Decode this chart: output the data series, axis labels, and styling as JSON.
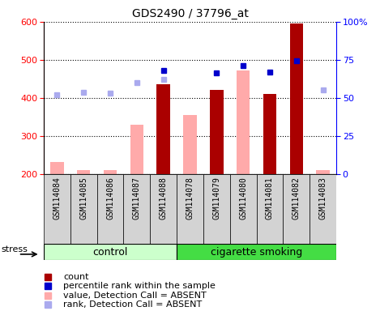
{
  "title": "GDS2490 / 37796_at",
  "samples": [
    "GSM114084",
    "GSM114085",
    "GSM114086",
    "GSM114087",
    "GSM114088",
    "GSM114078",
    "GSM114079",
    "GSM114080",
    "GSM114081",
    "GSM114082",
    "GSM114083"
  ],
  "count_values": [
    null,
    null,
    null,
    null,
    435,
    null,
    422,
    null,
    410,
    595,
    null
  ],
  "absent_value_bars": [
    232,
    210,
    210,
    330,
    null,
    355,
    null,
    473,
    null,
    null,
    210
  ],
  "percentile_rank_left": [
    null,
    null,
    null,
    null,
    473,
    null,
    465,
    485,
    468,
    498,
    null
  ],
  "absent_rank_dots_left": [
    408,
    415,
    413,
    440,
    448,
    null,
    null,
    null,
    null,
    null,
    422
  ],
  "ylim_left": [
    200,
    600
  ],
  "ylim_right": [
    0,
    100
  ],
  "yticks_left": [
    200,
    300,
    400,
    500,
    600
  ],
  "yticks_right": [
    0,
    25,
    50,
    75,
    100
  ],
  "count_color": "#aa0000",
  "absent_bar_color": "#ffaaaa",
  "percentile_color": "#0000cc",
  "absent_rank_color": "#aaaaee",
  "control_color": "#ccffcc",
  "smoking_color": "#44dd44",
  "n_control": 5,
  "n_smoking": 6
}
